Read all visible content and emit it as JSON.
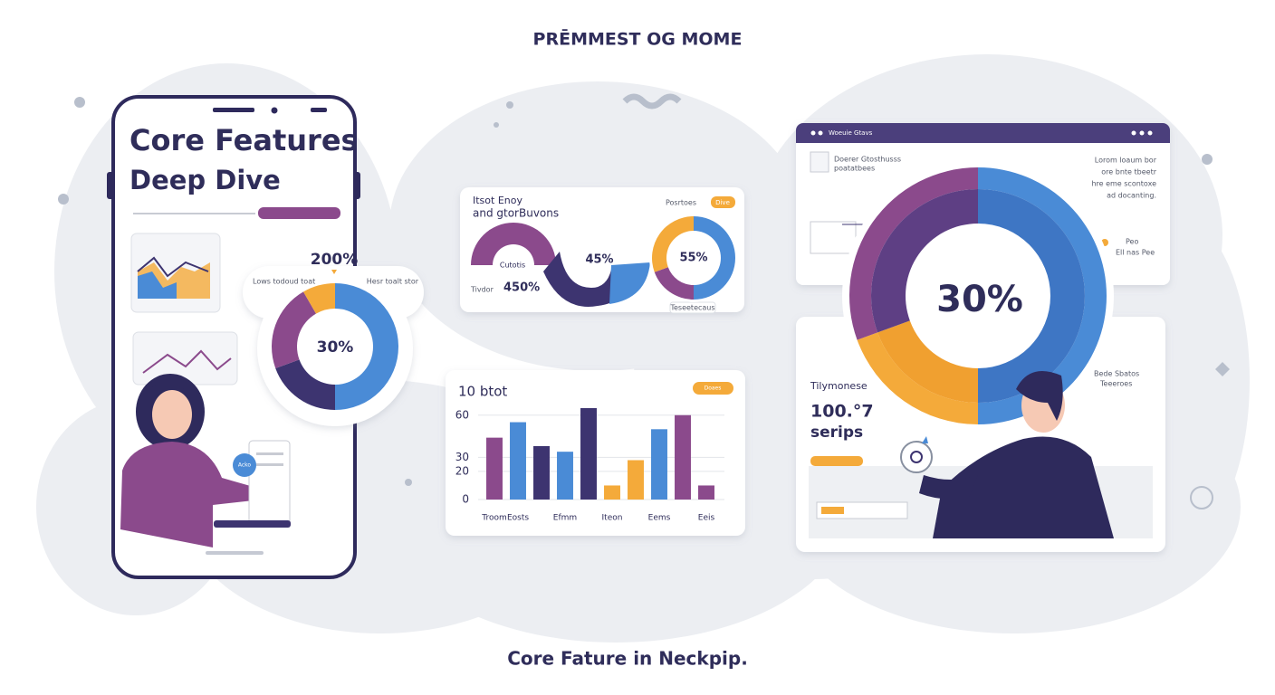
{
  "title": "PRĒMMEST OG MOME",
  "caption": "Core Fature in Neckpip.",
  "phone": {
    "heading_1": "Core Features",
    "heading_2": "Deep Dive",
    "chart_label": "200%",
    "donut_center": "30%",
    "note_1": "Lows todoud toat",
    "note_2": "Hesr toalt stor",
    "badge": "Acko"
  },
  "panel": {
    "title_1": "Itsot Enoy",
    "title_2": "and gtorBuvons",
    "badge": "Dive",
    "tag": "Posrtoes",
    "arc_label": "Cutotis",
    "value_1": "45%",
    "value_2": "450%",
    "side_label": "Tivdor",
    "donut_center": "55%",
    "footer": "Teseetecaus"
  },
  "window": {
    "header": "Woeuie Gtavs",
    "note_1": "Doerer Gtosthusss",
    "note_2": "poatatbees",
    "text_1": "Lorom loaum bor",
    "text_2": "ore bnte tbeetr",
    "text_3": "hre eme scontoxe",
    "text_4": "ad docanting.",
    "side_1": "Peo",
    "side_2": "Ell nas Pee",
    "donut_center": "30%"
  },
  "card": {
    "label": "Tilymonese",
    "value": "100.°7",
    "unit": "serips",
    "side_1": "Bede Sbatos",
    "side_2": "Teeeroes"
  },
  "chart_data": {
    "type": "bar",
    "title": "10 btot",
    "badge": "Doaes",
    "categories": [
      "Troom",
      "Eosts",
      null,
      "Efmm",
      null,
      "Iteon",
      null,
      "Eems",
      null,
      "Eeis"
    ],
    "values": [
      44,
      55,
      38,
      34,
      65,
      10,
      28,
      50,
      60,
      10
    ],
    "colors": [
      "#8b4a8c",
      "#4a8bd6",
      "#3d3470",
      "#4a8bd6",
      "#3d3470",
      "#f4aa3a",
      "#f4aa3a",
      "#4a8bd6",
      "#8b4a8c",
      "#8b4a8c"
    ],
    "ylim": [
      0,
      65
    ],
    "yticks": [
      0,
      20,
      30,
      60
    ],
    "grid": true
  }
}
